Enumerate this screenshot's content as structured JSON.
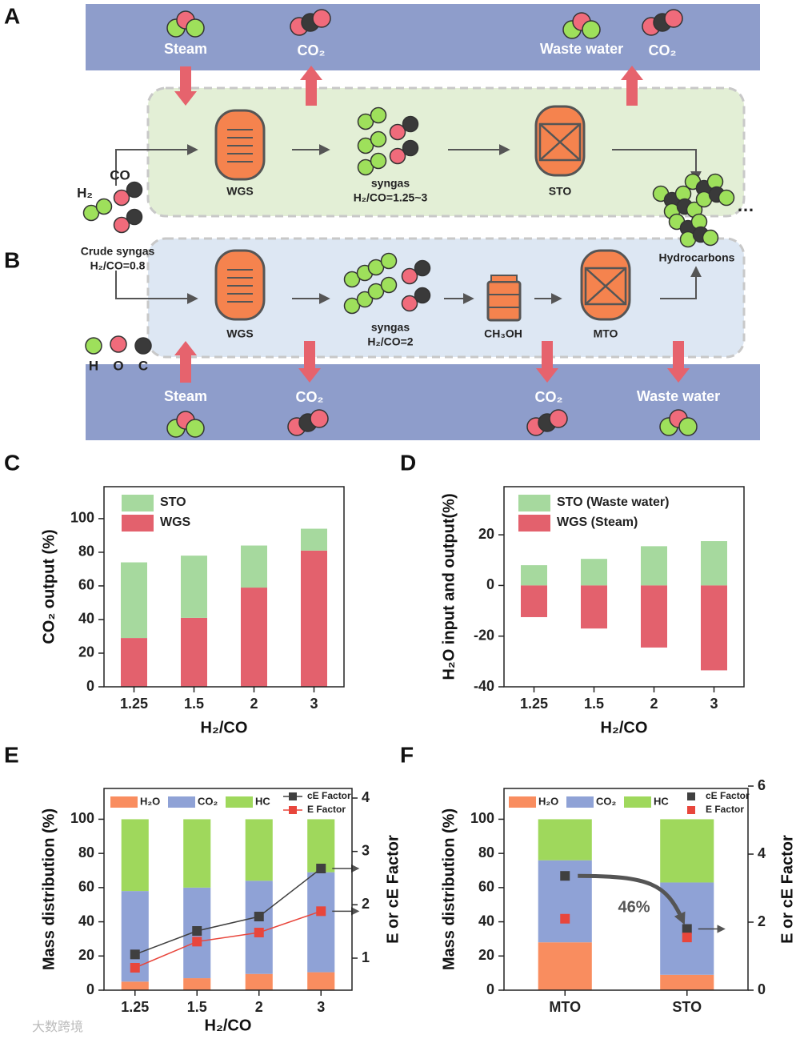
{
  "panel_labels": [
    "A",
    "B",
    "C",
    "D",
    "E",
    "F"
  ],
  "diagram": {
    "labels": [
      "Steam",
      "CO₂",
      "Waste water",
      "CO₂",
      "WGS",
      "syngas",
      "H₂/CO=1.25~3",
      "STO",
      "H₂",
      "CO",
      "Crude syngas",
      "H₂/CO=0.8",
      "Hydrocarbons",
      "…",
      "WGS",
      "syngas",
      "H₂/CO=2",
      "CH₃OH",
      "MTO",
      "H",
      "O",
      "C",
      "Steam",
      "CO₂",
      "CO₂",
      "Waste water"
    ]
  },
  "watermark": "大数跨境",
  "chart_data": [
    {
      "type": "bar",
      "stack_from": "last",
      "x_label": "H₂/CO",
      "y_label": "CO₂ output (%)",
      "categories": [
        "1.25",
        "1.5",
        "2",
        "3"
      ],
      "series": [
        {
          "name": "STO",
          "color": "#a6d99e",
          "values": [
            45,
            37,
            25,
            13
          ]
        },
        {
          "name": "WGS",
          "color": "#e3616d",
          "values": [
            29,
            41,
            59,
            81
          ]
        }
      ],
      "ylim": [
        0,
        119
      ],
      "yticks": [
        0,
        20,
        40,
        60,
        80,
        100
      ]
    },
    {
      "type": "bar",
      "stack_from": "first",
      "x_label": "H₂/CO",
      "y_label": "H₂O input and output(%)",
      "categories": [
        "1.25",
        "1.5",
        "2",
        "3"
      ],
      "series": [
        {
          "name": "STO (Waste water)",
          "color": "#a6d99e",
          "values": [
            8,
            10.5,
            15.5,
            17.5
          ]
        },
        {
          "name": "WGS (Steam)",
          "color": "#e3616d",
          "values": [
            -12.5,
            -17,
            -24.5,
            -33.5
          ]
        }
      ],
      "ylim": [
        -40,
        39
      ],
      "yticks": [
        -40,
        -20,
        0,
        20
      ]
    },
    {
      "type": "bar",
      "stack_from": "first",
      "x_label": "H₂/CO",
      "y_label": "Mass distribution (%)",
      "y2_label": "E or cE Factor",
      "categories": [
        "1.25",
        "1.5",
        "2",
        "3"
      ],
      "series": [
        {
          "name": "H₂O",
          "color": "#f98d5f",
          "values": [
            5,
            7,
            9.5,
            10.5
          ]
        },
        {
          "name": "CO₂",
          "color": "#8fa2d6",
          "values": [
            53,
            53,
            54.5,
            58.5
          ]
        },
        {
          "name": "HC",
          "color": "#9fd85c",
          "values": [
            42,
            40,
            36,
            31
          ]
        },
        {
          "name": "cE Factor",
          "color": "#404040",
          "type": "line",
          "axis": "y2",
          "values": [
            1.07,
            1.51,
            1.78,
            2.68
          ]
        },
        {
          "name": "E Factor",
          "color": "#e8463c",
          "type": "line",
          "axis": "y2",
          "values": [
            0.82,
            1.31,
            1.48,
            1.88
          ]
        }
      ],
      "ylim": [
        0,
        118
      ],
      "yticks": [
        0,
        20,
        40,
        60,
        80,
        100
      ],
      "y2lim": [
        0.4,
        4.18
      ],
      "y2ticks": [
        1,
        2,
        3,
        4
      ]
    },
    {
      "type": "bar",
      "stack_from": "first",
      "y_label": "Mass distribution (%)",
      "y2_label": "E or cE Factor",
      "categories": [
        "MTO",
        "STO"
      ],
      "series": [
        {
          "name": "H₂O",
          "color": "#f98d5f",
          "values": [
            28,
            9
          ]
        },
        {
          "name": "CO₂",
          "color": "#8fa2d6",
          "values": [
            48,
            54
          ]
        },
        {
          "name": "HC",
          "color": "#9fd85c",
          "values": [
            24,
            37
          ]
        },
        {
          "name": "cE Factor",
          "color": "#404040",
          "type": "scatter",
          "axis": "y2",
          "values": [
            3.36,
            1.8
          ]
        },
        {
          "name": "E Factor",
          "color": "#e8463c",
          "type": "scatter",
          "axis": "y2",
          "values": [
            2.1,
            1.55
          ]
        }
      ],
      "ylim": [
        0,
        118
      ],
      "yticks": [
        0,
        20,
        40,
        60,
        80,
        100
      ],
      "y2lim": [
        0,
        5.93
      ],
      "y2ticks": [
        0,
        2,
        4,
        6
      ],
      "annotation": "46%"
    }
  ]
}
